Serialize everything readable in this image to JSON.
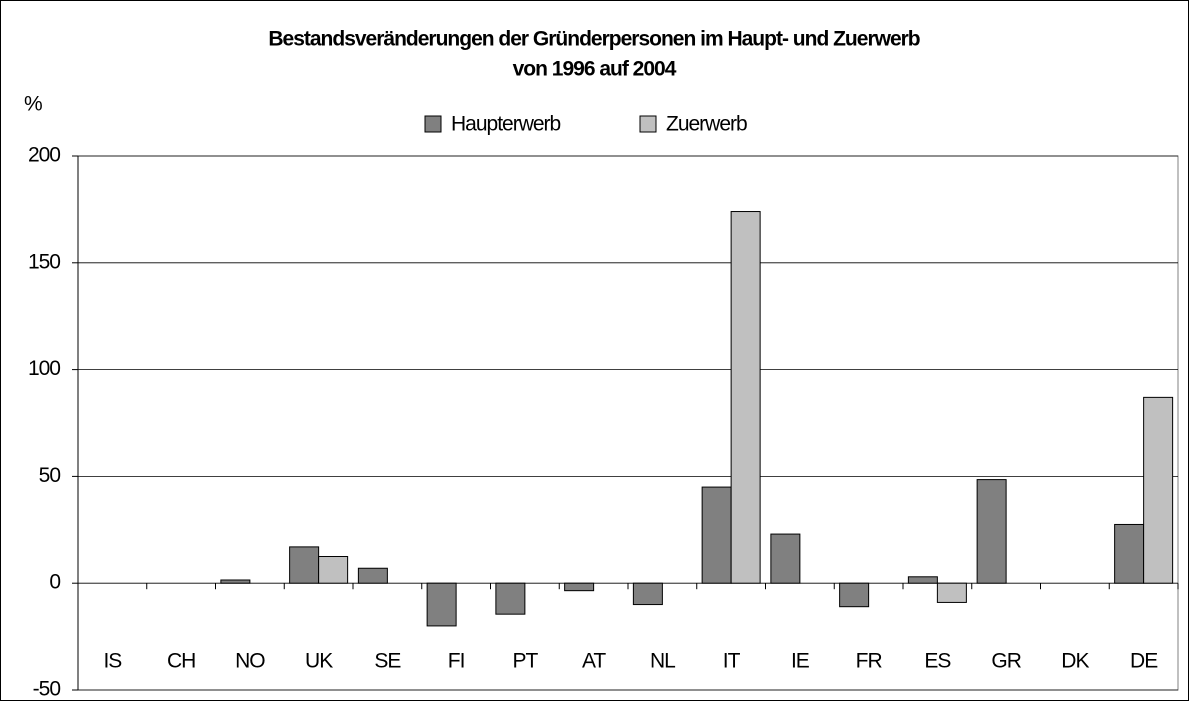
{
  "chart_data": {
    "type": "bar",
    "title": "Bestandsveränderungen der Gründerpersonen im Haupt- und Zuerwerb",
    "subtitle": "von 1996 auf 2004",
    "y_label": "%",
    "categories": [
      "IS",
      "CH",
      "NO",
      "UK",
      "SE",
      "FI",
      "PT",
      "AT",
      "NL",
      "IT",
      "IE",
      "FR",
      "ES",
      "GR",
      "DK",
      "DE"
    ],
    "series": [
      {
        "name": "Haupterwerb",
        "color": "#808080",
        "values": [
          null,
          null,
          1.5,
          17,
          7,
          -20,
          -14.5,
          -3.5,
          -10,
          45,
          23,
          -11,
          3,
          48.5,
          null,
          27.5
        ]
      },
      {
        "name": "Zuerwerb",
        "color": "#c0c0c0",
        "values": [
          null,
          null,
          null,
          12.5,
          null,
          null,
          null,
          null,
          null,
          174,
          null,
          null,
          -9,
          null,
          null,
          87
        ]
      }
    ],
    "ylim": [
      -50,
      200
    ],
    "yticks": [
      -50,
      0,
      50,
      100,
      150,
      200
    ],
    "grid": true,
    "legend": "top"
  }
}
